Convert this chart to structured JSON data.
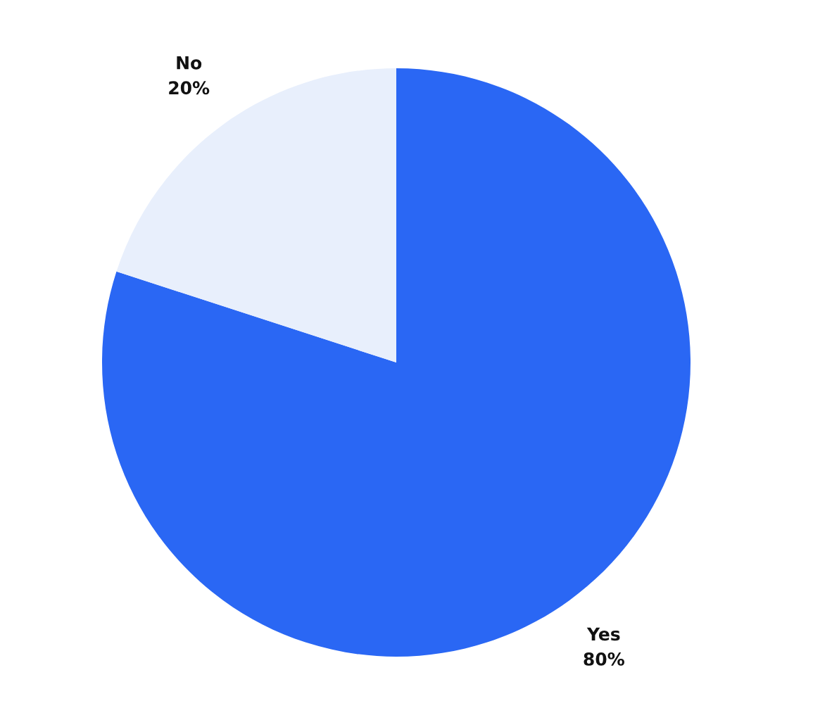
{
  "chart_data": {
    "type": "pie",
    "categories": [
      "Yes",
      "No"
    ],
    "values": [
      80,
      20
    ],
    "value_labels": [
      "80%",
      "20%"
    ],
    "colors": [
      "#2a67f4",
      "#e8effc"
    ]
  }
}
